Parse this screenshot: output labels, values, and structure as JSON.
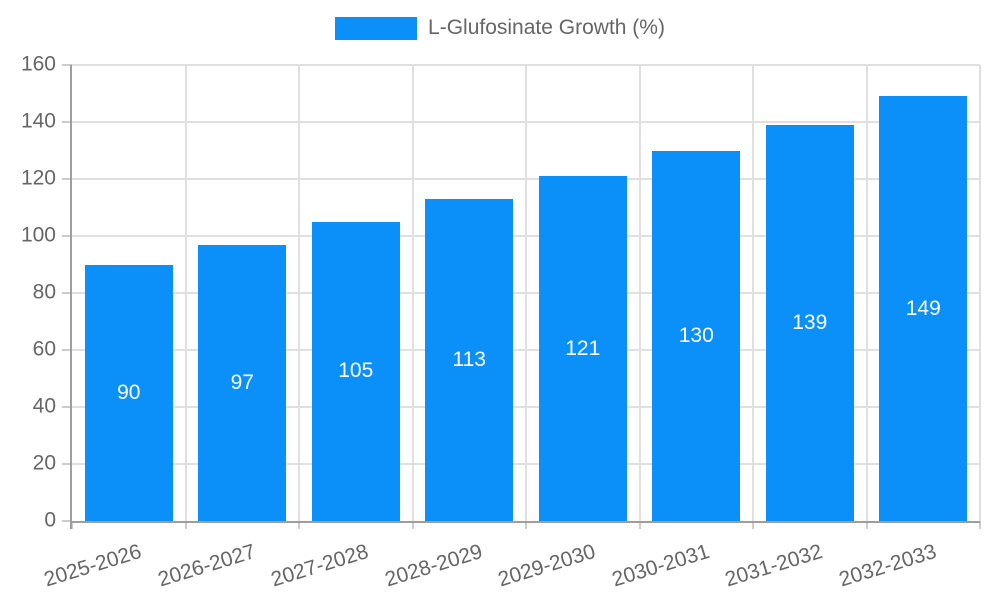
{
  "chart_data": {
    "type": "bar",
    "title": "",
    "legend": "L-Glufosinate Growth (%)",
    "legend_position": "top-center",
    "categories": [
      "2025-2026",
      "2026-2027",
      "2027-2028",
      "2028-2029",
      "2029-2030",
      "2030-2031",
      "2031-2032",
      "2032-2033"
    ],
    "values": [
      90,
      97,
      105,
      113,
      121,
      130,
      139,
      149
    ],
    "xlabel": "",
    "ylabel": "",
    "ylim": [
      0,
      160
    ],
    "yticks": [
      0,
      20,
      40,
      60,
      80,
      100,
      120,
      140,
      160
    ],
    "grid": true,
    "colors": {
      "bar": "#0b8ff9",
      "bar_label": "#ffffff",
      "grid": "#e0e0e0",
      "axis": "#9e9e9e",
      "tick": "#cccccc",
      "text": "#666666",
      "background": "#ffffff"
    }
  }
}
